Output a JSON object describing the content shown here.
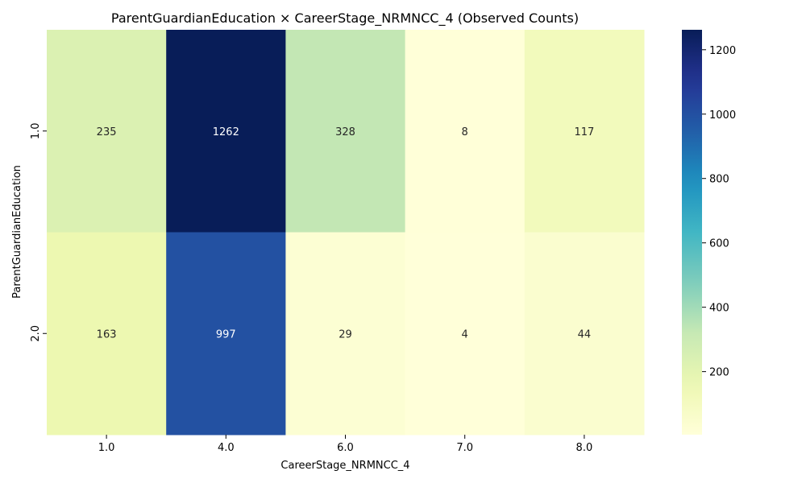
{
  "chart_data": {
    "type": "heatmap",
    "title": "ParentGuardianEducation × CareerStage_NRMNCC_4 (Observed Counts)",
    "xlabel": "CareerStage_NRMNCC_4",
    "ylabel": "ParentGuardianEducation",
    "x_categories": [
      "1.0",
      "4.0",
      "6.0",
      "7.0",
      "8.0"
    ],
    "y_categories": [
      "1.0",
      "2.0"
    ],
    "values": [
      [
        235,
        1262,
        328,
        8,
        117
      ],
      [
        163,
        997,
        29,
        4,
        44
      ]
    ],
    "colorbar": {
      "cmap": "YlGnBu",
      "min": 4,
      "max": 1262,
      "ticks": [
        200,
        400,
        600,
        800,
        1000,
        1200
      ]
    }
  }
}
